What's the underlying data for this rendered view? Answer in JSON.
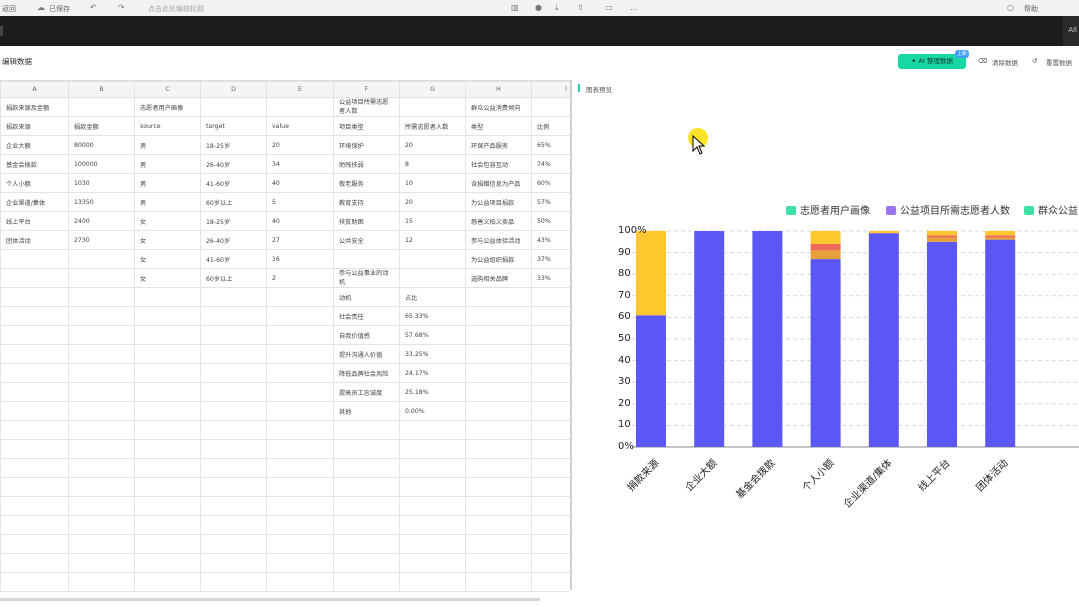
{
  "topbar": {
    "item1": "返回",
    "item2": "已保存",
    "item3": "点击此处编辑标题",
    "right": "帮助",
    "right2": "AIl"
  },
  "header": {
    "title": "编辑数据",
    "ai_button": "AI 整理数据",
    "ai_badge": "上新",
    "link1": "清除数据",
    "link2": "重置数据"
  },
  "sheet": {
    "columns": [
      "A",
      "B",
      "C",
      "D",
      "E",
      "F",
      "G",
      "H",
      "I"
    ],
    "rows": [
      [
        "捐款来源及金额",
        "",
        "志愿者用户画像",
        "",
        "",
        "公益项目所需志愿者人数",
        "",
        "群众公益消费倾向",
        ""
      ],
      [
        "捐款来源",
        "捐款金额",
        "source",
        "target",
        "value",
        "项目类型",
        "所需志愿者人数",
        "类型",
        "比例"
      ],
      [
        "企业大额",
        "80000",
        "男",
        "18-25岁",
        "20",
        "环境保护",
        "20",
        "环保产品服务",
        "65%"
      ],
      [
        "基金会拨款",
        "100000",
        "男",
        "26-40岁",
        "34",
        "助残扶弱",
        "8",
        "社会包容互动",
        "74%"
      ],
      [
        "个人小额",
        "1030",
        "男",
        "41-60岁",
        "40",
        "敬老服务",
        "10",
        "含捐赠信息为产品",
        "60%"
      ],
      [
        "企业渠道/集体",
        "13350",
        "男",
        "60岁以上",
        "5",
        "教育支持",
        "20",
        "为公益项目捐款",
        "57%"
      ],
      [
        "线上平台",
        "2400",
        "女",
        "18-25岁",
        "40",
        "扶贫助困",
        "15",
        "慈善义拍义卖品",
        "50%"
      ],
      [
        "团体活动",
        "2730",
        "女",
        "26-40岁",
        "27",
        "公共安全",
        "12",
        "参与公益体验活动",
        "43%"
      ],
      [
        "",
        "",
        "女",
        "41-60岁",
        "16",
        "",
        "",
        "为公益组织捐款",
        "37%"
      ],
      [
        "",
        "",
        "女",
        "60岁以上",
        "2",
        "参与公益事业的动机",
        "",
        "选购相关品牌",
        "33%"
      ],
      [
        "",
        "",
        "",
        "",
        "",
        "动机",
        "占比",
        "",
        ""
      ],
      [
        "",
        "",
        "",
        "",
        "",
        "社会责任",
        "65.33%",
        "",
        ""
      ],
      [
        "",
        "",
        "",
        "",
        "",
        "自我价值感",
        "57.68%",
        "",
        ""
      ],
      [
        "",
        "",
        "",
        "",
        "",
        "提升沟通人价值",
        "33.25%",
        "",
        ""
      ],
      [
        "",
        "",
        "",
        "",
        "",
        "降低品牌社会风险",
        "24.17%",
        "",
        ""
      ],
      [
        "",
        "",
        "",
        "",
        "",
        "提高员工忠诚度",
        "25.18%",
        "",
        ""
      ],
      [
        "",
        "",
        "",
        "",
        "",
        "其他",
        "0.00%",
        "",
        ""
      ]
    ],
    "empty_rows": 9
  },
  "preview": {
    "label": "图表预览"
  },
  "chart_data": {
    "type": "bar",
    "stacked": "percent",
    "legend_position": "top-right",
    "legend": [
      {
        "label": "志愿者用户画像",
        "color": "#3ee0a6"
      },
      {
        "label": "公益项目所需志愿者人数",
        "color": "#9b74f0"
      },
      {
        "label": "群众公益",
        "color": "#3ee0a6"
      }
    ],
    "yticks": [
      "0%",
      "10",
      "20",
      "30",
      "40",
      "50",
      "60",
      "70",
      "80",
      "90",
      "100%"
    ],
    "ylim": [
      0,
      100
    ],
    "grid": true,
    "categories": [
      "捐款来源",
      "企业大额",
      "基金会拨款",
      "个人小额",
      "企业渠道/集体",
      "线上平台",
      "团体活动"
    ],
    "series": [
      {
        "color": "#5b57f5",
        "values": [
          61,
          100,
          100,
          87,
          99,
          95,
          96
        ]
      },
      {
        "color": "#e8a13a",
        "values": [
          0,
          0,
          0,
          4,
          0,
          2,
          1
        ]
      },
      {
        "color": "#f06a5a",
        "values": [
          0,
          0,
          0,
          3,
          0,
          1,
          1
        ]
      },
      {
        "color": "#ffc72e",
        "values": [
          39,
          0,
          0,
          6,
          1,
          2,
          2
        ]
      }
    ]
  }
}
